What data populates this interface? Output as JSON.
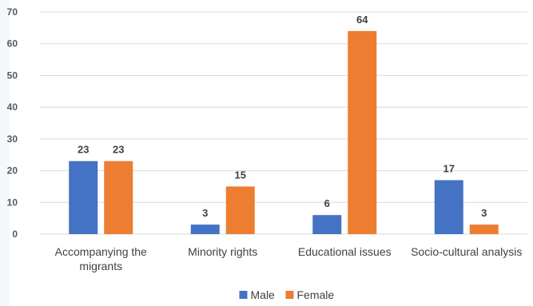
{
  "chart_data": {
    "type": "bar",
    "categories": [
      "Accompanying the migrants",
      "Minority rights",
      "Educational issues",
      "Socio-cultural analysis"
    ],
    "category_lines": [
      [
        "Accompanying the",
        "migrants"
      ],
      [
        "Minority rights"
      ],
      [
        "Educational issues"
      ],
      [
        "Socio-cultural analysis"
      ]
    ],
    "series": [
      {
        "name": "Male",
        "color": "#4472c4",
        "values": [
          23,
          3,
          6,
          17
        ]
      },
      {
        "name": "Female",
        "color": "#ed7d31",
        "values": [
          23,
          15,
          64,
          3
        ]
      }
    ],
    "title": "",
    "xlabel": "",
    "ylabel": "",
    "ylim": [
      0,
      70
    ],
    "yticks": [
      0,
      10,
      20,
      30,
      40,
      50,
      60,
      70
    ],
    "grid": true,
    "legend": "bottom-center",
    "data_labels": true
  }
}
